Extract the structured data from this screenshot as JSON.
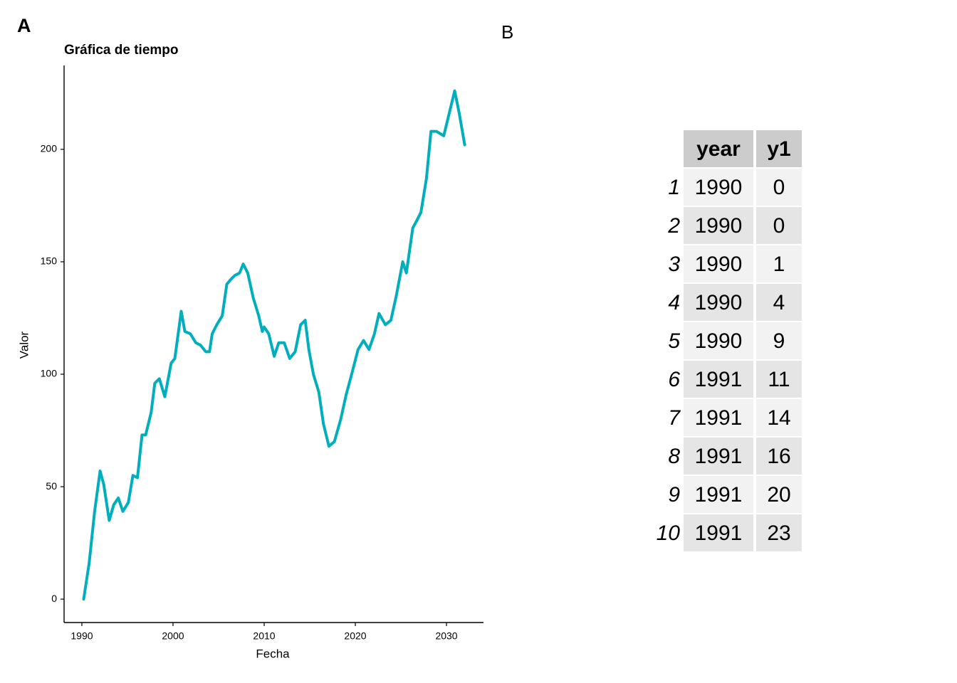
{
  "panels": [
    "A",
    "B"
  ],
  "chart_data": {
    "type": "line",
    "title": "Gráfica de tiempo",
    "x_label": "Fecha",
    "y_label": "Valor",
    "x": [
      1990.2,
      1990.8,
      1991.4,
      1992.0,
      1992.4,
      1993.0,
      1993.5,
      1994.0,
      1994.5,
      1995.1,
      1995.6,
      1996.1,
      1996.6,
      1997.0,
      1997.6,
      1998.0,
      1998.5,
      1999.1,
      1999.8,
      2000.2,
      2000.9,
      2001.3,
      2001.9,
      2002.5,
      2003.0,
      2003.6,
      2004.0,
      2004.3,
      2004.8,
      2005.4,
      2005.9,
      2006.3,
      2006.8,
      2007.3,
      2007.7,
      2008.2,
      2008.8,
      2009.4,
      2009.8,
      2010.0,
      2010.5,
      2011.1,
      2011.6,
      2012.2,
      2012.8,
      2013.4,
      2014.0,
      2014.5,
      2014.9,
      2015.4,
      2016.0,
      2016.5,
      2017.1,
      2017.7,
      2018.4,
      2019.0,
      2019.6,
      2020.3,
      2020.9,
      2021.5,
      2022.1,
      2022.6,
      2023.3,
      2023.9,
      2024.5,
      2025.2,
      2025.6,
      2026.3,
      2026.7,
      2027.2,
      2027.8,
      2028.3,
      2028.9,
      2029.7,
      2030.3,
      2030.9,
      2031.4,
      2032.0
    ],
    "series": [
      {
        "color": "#00afbb",
        "values": [
          0,
          16,
          39,
          57,
          51,
          35,
          42,
          45,
          39,
          43,
          55,
          54,
          73,
          73,
          83,
          96,
          98,
          90,
          105,
          107,
          128,
          119,
          118,
          114,
          113,
          110,
          110,
          118,
          122,
          126,
          140,
          142,
          144,
          145,
          149,
          145,
          134,
          126,
          119,
          121,
          118,
          108,
          114,
          114,
          107,
          110,
          122,
          124,
          111,
          100,
          92,
          78,
          68,
          70,
          80,
          91,
          100,
          111,
          115,
          111,
          118,
          127,
          122,
          124,
          135,
          150,
          145,
          165,
          168,
          172,
          187,
          208,
          208,
          206,
          216,
          226,
          216,
          202
        ]
      }
    ],
    "xlim": [
      1988.05,
      2034.06
    ],
    "ylim": [
      -10.4,
      237.3
    ],
    "xticks": [
      1990,
      2000,
      2010,
      2020,
      2030
    ],
    "yticks": [
      0,
      50,
      100,
      150,
      200
    ]
  },
  "table": {
    "header": [
      "year",
      "y1"
    ],
    "rows": [
      [
        1,
        1990,
        0
      ],
      [
        2,
        1990,
        0
      ],
      [
        3,
        1990,
        1
      ],
      [
        4,
        1990,
        4
      ],
      [
        5,
        1990,
        9
      ],
      [
        6,
        1991,
        11
      ],
      [
        7,
        1991,
        14
      ],
      [
        8,
        1991,
        16
      ],
      [
        9,
        1991,
        20
      ],
      [
        10,
        1991,
        23
      ]
    ]
  }
}
